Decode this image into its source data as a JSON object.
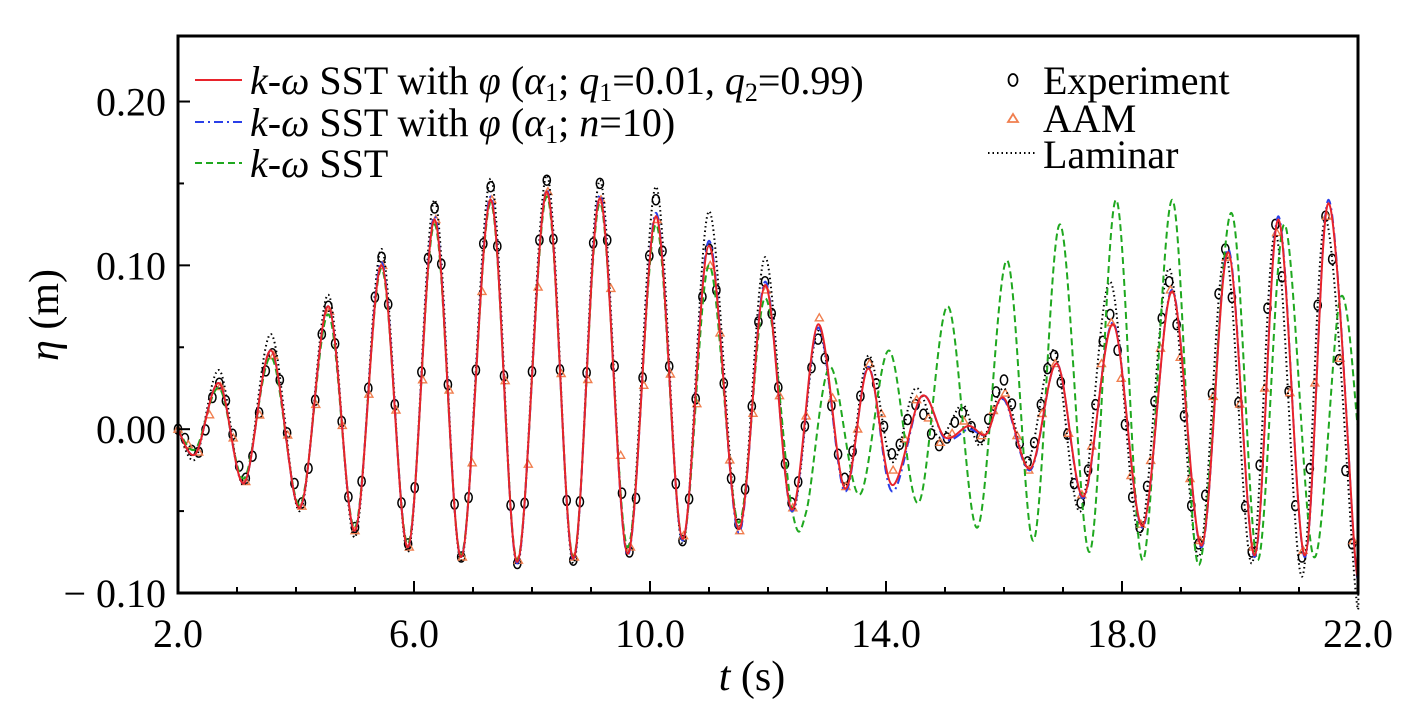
{
  "chart_data": {
    "type": "line",
    "xlabel": {
      "symbol": "t",
      "unit": " (s)"
    },
    "ylabel": {
      "symbol": "η",
      "unit": " (m)"
    },
    "xlim": [
      2.0,
      22.0
    ],
    "ylim": [
      -0.1,
      0.24
    ],
    "xticks": [
      2.0,
      6.0,
      10.0,
      14.0,
      18.0,
      22.0
    ],
    "xtick_labels": [
      "2.0",
      "6.0",
      "10.0",
      "14.0",
      "18.0",
      "22.0"
    ],
    "yticks": [
      -0.1,
      0.0,
      0.1,
      0.2
    ],
    "ytick_labels": [
      "− 0.10",
      "0.00",
      "0.10",
      "0.20"
    ],
    "grid": false,
    "legend_placement": "top",
    "legend": {
      "sst_phi_a": {
        "k": "k",
        "dash": "-",
        "omega": "ω",
        "main": " SST with ",
        "phi": "φ",
        "open": " (",
        "alpha": "α",
        "alpha_sub": "1",
        "semi": "; ",
        "q1": "q",
        "q1_sub": "1",
        "q1_val": "=0.01, ",
        "q2": "q",
        "q2_sub": "2",
        "q2_val": "=0.99)"
      },
      "sst_phi_b": {
        "k": "k",
        "dash": "-",
        "omega": "ω",
        "main": " SST with ",
        "phi": "φ",
        "open": " (",
        "alpha": "α",
        "alpha_sub": "1",
        "semi": "; ",
        "n": "n",
        "n_val": "=10)"
      },
      "sst": {
        "k": "k",
        "dash": "-",
        "omega": "ω",
        "main": " SST"
      },
      "experiment": "Experiment",
      "aam": "AAM",
      "laminar": "Laminar"
    },
    "series": [
      {
        "key": "experiment",
        "style": "marker-circle",
        "color": "#000000",
        "points": [
          [
            2.0,
            0.0
          ],
          [
            2.35,
            -0.014
          ],
          [
            2.7,
            0.028
          ],
          [
            3.15,
            -0.03
          ],
          [
            3.6,
            0.046
          ],
          [
            4.1,
            -0.045
          ],
          [
            4.55,
            0.075
          ],
          [
            5.0,
            -0.06
          ],
          [
            5.45,
            0.105
          ],
          [
            5.9,
            -0.07
          ],
          [
            6.35,
            0.135
          ],
          [
            6.8,
            -0.078
          ],
          [
            7.3,
            0.148
          ],
          [
            7.75,
            -0.082
          ],
          [
            8.25,
            0.152
          ],
          [
            8.7,
            -0.08
          ],
          [
            9.15,
            0.15
          ],
          [
            9.65,
            -0.075
          ],
          [
            10.1,
            0.14
          ],
          [
            10.55,
            -0.068
          ],
          [
            11.0,
            0.11
          ],
          [
            11.5,
            -0.058
          ],
          [
            11.95,
            0.09
          ],
          [
            12.4,
            -0.045
          ],
          [
            12.85,
            0.055
          ],
          [
            13.3,
            -0.03
          ],
          [
            13.7,
            0.04
          ],
          [
            14.1,
            -0.015
          ],
          [
            14.5,
            0.015
          ],
          [
            14.9,
            -0.01
          ],
          [
            15.3,
            0.01
          ],
          [
            15.6,
            -0.005
          ],
          [
            16.0,
            0.03
          ],
          [
            16.4,
            -0.02
          ],
          [
            16.85,
            0.045
          ],
          [
            17.3,
            -0.045
          ],
          [
            17.8,
            0.07
          ],
          [
            18.3,
            -0.06
          ],
          [
            18.8,
            0.09
          ],
          [
            19.3,
            -0.07
          ],
          [
            19.75,
            0.11
          ],
          [
            20.2,
            -0.075
          ],
          [
            20.6,
            0.125
          ],
          [
            21.05,
            -0.078
          ],
          [
            21.45,
            0.13
          ],
          [
            21.9,
            -0.07
          ],
          [
            22.0,
            -0.06
          ]
        ]
      },
      {
        "key": "aam",
        "style": "marker-triangle",
        "color": "#f07e4e",
        "points": [
          [
            2.0,
            0.0
          ],
          [
            2.35,
            -0.014
          ],
          [
            2.72,
            0.026
          ],
          [
            3.15,
            -0.032
          ],
          [
            3.62,
            0.045
          ],
          [
            4.1,
            -0.047
          ],
          [
            4.57,
            0.072
          ],
          [
            5.0,
            -0.062
          ],
          [
            5.47,
            0.1
          ],
          [
            5.92,
            -0.072
          ],
          [
            6.37,
            0.128
          ],
          [
            6.82,
            -0.078
          ],
          [
            7.32,
            0.14
          ],
          [
            7.77,
            -0.08
          ],
          [
            8.27,
            0.145
          ],
          [
            8.72,
            -0.078
          ],
          [
            9.17,
            0.14
          ],
          [
            9.67,
            -0.072
          ],
          [
            10.12,
            0.128
          ],
          [
            10.57,
            -0.065
          ],
          [
            11.02,
            0.1
          ],
          [
            11.52,
            -0.062
          ],
          [
            11.97,
            0.085
          ],
          [
            12.42,
            -0.048
          ],
          [
            12.87,
            0.068
          ],
          [
            13.32,
            -0.035
          ],
          [
            13.72,
            0.04
          ],
          [
            14.12,
            -0.025
          ],
          [
            14.52,
            0.018
          ],
          [
            14.92,
            -0.008
          ],
          [
            15.32,
            0.005
          ],
          [
            15.62,
            -0.004
          ],
          [
            16.02,
            0.022
          ],
          [
            16.42,
            -0.025
          ],
          [
            16.87,
            0.04
          ],
          [
            17.32,
            -0.04
          ],
          [
            17.82,
            0.065
          ],
          [
            18.32,
            -0.058
          ],
          [
            18.82,
            0.085
          ],
          [
            19.32,
            -0.068
          ],
          [
            19.77,
            0.105
          ],
          [
            20.22,
            -0.072
          ],
          [
            20.62,
            0.12
          ],
          [
            21.07,
            -0.074
          ],
          [
            21.47,
            0.13
          ],
          [
            21.92,
            -0.068
          ],
          [
            22.0,
            -0.06
          ]
        ]
      },
      {
        "key": "laminar",
        "style": "dotted",
        "color": "#000000",
        "points": [
          [
            2.0,
            0.0
          ],
          [
            2.3,
            -0.018
          ],
          [
            2.7,
            0.036
          ],
          [
            3.12,
            -0.034
          ],
          [
            3.58,
            0.058
          ],
          [
            4.07,
            -0.05
          ],
          [
            4.55,
            0.082
          ],
          [
            5.0,
            -0.066
          ],
          [
            5.45,
            0.11
          ],
          [
            5.9,
            -0.075
          ],
          [
            6.35,
            0.14
          ],
          [
            6.8,
            -0.08
          ],
          [
            7.3,
            0.153
          ],
          [
            7.75,
            -0.083
          ],
          [
            8.25,
            0.155
          ],
          [
            8.7,
            -0.082
          ],
          [
            9.15,
            0.152
          ],
          [
            9.62,
            -0.075
          ],
          [
            10.1,
            0.148
          ],
          [
            10.55,
            -0.07
          ],
          [
            11.0,
            0.133
          ],
          [
            11.5,
            -0.06
          ],
          [
            11.95,
            0.105
          ],
          [
            12.4,
            -0.05
          ],
          [
            12.85,
            0.06
          ],
          [
            13.3,
            -0.035
          ],
          [
            13.7,
            0.045
          ],
          [
            14.1,
            -0.02
          ],
          [
            14.5,
            0.025
          ],
          [
            14.9,
            -0.005
          ],
          [
            15.3,
            0.015
          ],
          [
            15.6,
            -0.01
          ],
          [
            16.0,
            0.025
          ],
          [
            16.4,
            -0.02
          ],
          [
            16.85,
            0.048
          ],
          [
            17.3,
            -0.05
          ],
          [
            17.8,
            0.09
          ],
          [
            18.3,
            -0.065
          ],
          [
            18.8,
            0.098
          ],
          [
            19.3,
            -0.078
          ],
          [
            19.75,
            0.108
          ],
          [
            20.2,
            -0.082
          ],
          [
            20.6,
            0.12
          ],
          [
            21.05,
            -0.09
          ],
          [
            21.45,
            0.128
          ],
          [
            21.95,
            -0.095
          ],
          [
            22.0,
            -0.09
          ]
        ]
      },
      {
        "key": "sst",
        "style": "dashed",
        "color": "#1fa81f",
        "points": [
          [
            2.0,
            0.0
          ],
          [
            2.3,
            -0.012
          ],
          [
            2.7,
            0.025
          ],
          [
            3.12,
            -0.03
          ],
          [
            3.58,
            0.044
          ],
          [
            4.07,
            -0.046
          ],
          [
            4.55,
            0.07
          ],
          [
            5.0,
            -0.06
          ],
          [
            5.45,
            0.098
          ],
          [
            5.9,
            -0.07
          ],
          [
            6.35,
            0.125
          ],
          [
            6.8,
            -0.077
          ],
          [
            7.3,
            0.138
          ],
          [
            7.75,
            -0.08
          ],
          [
            8.25,
            0.142
          ],
          [
            8.7,
            -0.078
          ],
          [
            9.15,
            0.138
          ],
          [
            9.62,
            -0.072
          ],
          [
            10.1,
            0.125
          ],
          [
            10.55,
            -0.067
          ],
          [
            11.0,
            0.1
          ],
          [
            11.5,
            -0.057
          ],
          [
            11.95,
            0.08
          ],
          [
            12.4,
            -0.048
          ],
          [
            12.65,
            -0.05
          ],
          [
            13.05,
            0.038
          ],
          [
            13.55,
            -0.04
          ],
          [
            14.05,
            0.048
          ],
          [
            14.55,
            -0.045
          ],
          [
            15.05,
            0.075
          ],
          [
            15.55,
            -0.06
          ],
          [
            16.05,
            0.103
          ],
          [
            16.5,
            -0.068
          ],
          [
            16.95,
            0.125
          ],
          [
            17.45,
            -0.075
          ],
          [
            17.9,
            0.14
          ],
          [
            18.35,
            -0.08
          ],
          [
            18.85,
            0.14
          ],
          [
            19.3,
            -0.083
          ],
          [
            19.85,
            0.132
          ],
          [
            20.3,
            -0.08
          ],
          [
            20.75,
            0.125
          ],
          [
            21.25,
            -0.078
          ],
          [
            21.7,
            0.08
          ],
          [
            22.0,
            0.0
          ]
        ]
      },
      {
        "key": "sst_phi_b",
        "style": "dashdot",
        "color": "#2a3fe8",
        "points": [
          [
            2.0,
            0.0
          ],
          [
            2.3,
            -0.015
          ],
          [
            2.7,
            0.028
          ],
          [
            3.12,
            -0.033
          ],
          [
            3.58,
            0.048
          ],
          [
            4.07,
            -0.048
          ],
          [
            4.55,
            0.075
          ],
          [
            5.0,
            -0.062
          ],
          [
            5.45,
            0.102
          ],
          [
            5.9,
            -0.072
          ],
          [
            6.35,
            0.13
          ],
          [
            6.8,
            -0.078
          ],
          [
            7.3,
            0.142
          ],
          [
            7.75,
            -0.082
          ],
          [
            8.25,
            0.146
          ],
          [
            8.7,
            -0.08
          ],
          [
            9.15,
            0.143
          ],
          [
            9.62,
            -0.077
          ],
          [
            10.1,
            0.132
          ],
          [
            10.55,
            -0.068
          ],
          [
            11.0,
            0.115
          ],
          [
            11.5,
            -0.063
          ],
          [
            11.95,
            0.09
          ],
          [
            12.4,
            -0.05
          ],
          [
            12.85,
            0.062
          ],
          [
            13.3,
            -0.038
          ],
          [
            13.7,
            0.038
          ],
          [
            14.1,
            -0.038
          ],
          [
            14.6,
            0.02
          ],
          [
            15.0,
            -0.006
          ],
          [
            15.4,
            0.0
          ],
          [
            15.7,
            -0.003
          ],
          [
            16.0,
            0.018
          ],
          [
            16.45,
            -0.025
          ],
          [
            16.9,
            0.04
          ],
          [
            17.35,
            -0.042
          ],
          [
            17.85,
            0.065
          ],
          [
            18.35,
            -0.06
          ],
          [
            18.85,
            0.085
          ],
          [
            19.35,
            -0.072
          ],
          [
            19.8,
            0.11
          ],
          [
            20.25,
            -0.078
          ],
          [
            20.65,
            0.13
          ],
          [
            21.1,
            -0.078
          ],
          [
            21.5,
            0.14
          ],
          [
            21.95,
            -0.078
          ],
          [
            22.0,
            -0.07
          ]
        ]
      },
      {
        "key": "sst_phi_a",
        "style": "solid",
        "color": "#e8232b",
        "points": [
          [
            2.0,
            0.0
          ],
          [
            2.3,
            -0.015
          ],
          [
            2.7,
            0.028
          ],
          [
            3.12,
            -0.033
          ],
          [
            3.58,
            0.048
          ],
          [
            4.07,
            -0.048
          ],
          [
            4.55,
            0.075
          ],
          [
            5.0,
            -0.062
          ],
          [
            5.45,
            0.1
          ],
          [
            5.9,
            -0.072
          ],
          [
            6.35,
            0.128
          ],
          [
            6.8,
            -0.078
          ],
          [
            7.3,
            0.14
          ],
          [
            7.75,
            -0.081
          ],
          [
            8.25,
            0.145
          ],
          [
            8.7,
            -0.079
          ],
          [
            9.15,
            0.141
          ],
          [
            9.62,
            -0.076
          ],
          [
            10.1,
            0.13
          ],
          [
            10.55,
            -0.067
          ],
          [
            11.0,
            0.112
          ],
          [
            11.5,
            -0.061
          ],
          [
            11.95,
            0.088
          ],
          [
            12.4,
            -0.049
          ],
          [
            12.85,
            0.064
          ],
          [
            13.3,
            -0.036
          ],
          [
            13.7,
            0.037
          ],
          [
            14.1,
            -0.034
          ],
          [
            14.6,
            0.02
          ],
          [
            15.0,
            -0.005
          ],
          [
            15.4,
            0.002
          ],
          [
            15.7,
            -0.003
          ],
          [
            16.0,
            0.019
          ],
          [
            16.45,
            -0.024
          ],
          [
            16.9,
            0.04
          ],
          [
            17.35,
            -0.041
          ],
          [
            17.85,
            0.064
          ],
          [
            18.35,
            -0.059
          ],
          [
            18.85,
            0.084
          ],
          [
            19.35,
            -0.071
          ],
          [
            19.8,
            0.108
          ],
          [
            20.25,
            -0.077
          ],
          [
            20.65,
            0.128
          ],
          [
            21.1,
            -0.077
          ],
          [
            21.5,
            0.138
          ],
          [
            21.95,
            -0.077
          ],
          [
            22.0,
            -0.068
          ]
        ]
      }
    ]
  }
}
